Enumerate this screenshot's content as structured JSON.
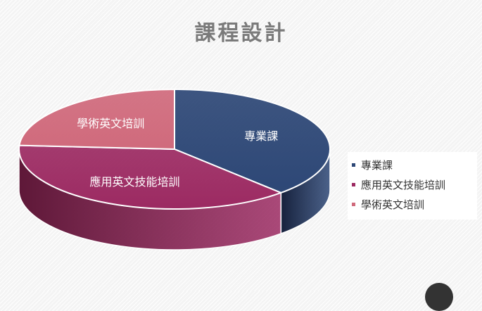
{
  "page": {
    "title": "課程設計"
  },
  "chart_data": {
    "type": "pie",
    "title": "課程設計",
    "labels": [
      "專業課",
      "應用英文技能培訓",
      "學術英文培訓"
    ],
    "values": [
      38,
      38,
      24
    ],
    "colors": [
      "#2d4776",
      "#9c2a62",
      "#d06a7c"
    ],
    "side_colors": [
      "#16213c",
      "#5e1838",
      "#7a2c44"
    ],
    "legend_position": "right",
    "style": "3d"
  }
}
